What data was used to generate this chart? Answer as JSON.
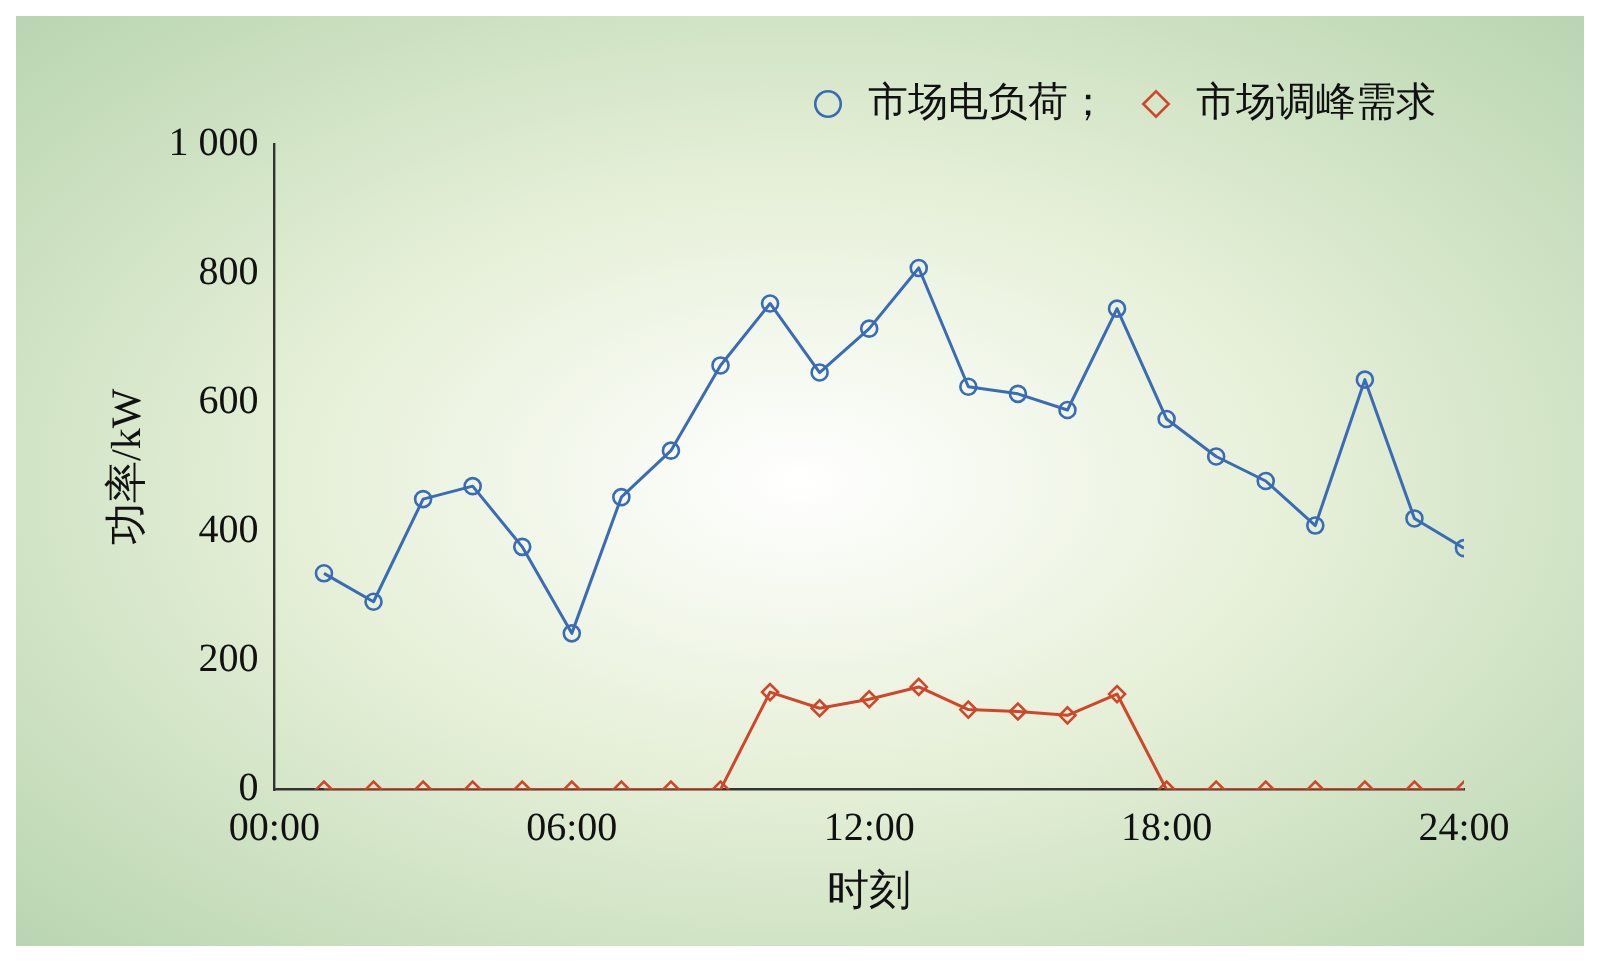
{
  "chart_data": {
    "type": "line",
    "xlabel": "时刻",
    "ylabel": "功率/kW",
    "x": [
      1,
      2,
      3,
      4,
      5,
      6,
      7,
      8,
      9,
      10,
      11,
      12,
      13,
      14,
      15,
      16,
      17,
      18,
      19,
      20,
      21,
      22,
      23,
      24
    ],
    "series": [
      {
        "name": "市场电负荷；",
        "color": "#3a6bb5",
        "marker": "circle",
        "values": [
          335,
          291,
          450,
          470,
          376,
          242,
          453,
          525,
          657,
          753,
          646,
          714,
          808,
          624,
          613,
          588,
          745,
          574,
          516,
          478,
          409,
          635,
          420,
          374
        ]
      },
      {
        "name": "市场调峰需求",
        "color": "#d0462a",
        "marker": "diamond",
        "values": [
          0,
          0,
          0,
          0,
          0,
          0,
          0,
          0,
          0,
          151,
          126,
          140,
          159,
          124,
          121,
          115,
          148,
          0,
          0,
          0,
          0,
          0,
          0,
          0
        ]
      }
    ],
    "xlim": [
      0,
      24
    ],
    "xticks": [
      {
        "value": 0,
        "label": "00:00"
      },
      {
        "value": 6,
        "label": "06:00"
      },
      {
        "value": 12,
        "label": "12:00"
      },
      {
        "value": 18,
        "label": "18:00"
      },
      {
        "value": 24,
        "label": "24:00"
      }
    ],
    "ylim": [
      0,
      1000
    ],
    "yticks": [
      0,
      200,
      400,
      600,
      800,
      {
        "value": 1000,
        "label": "1 000"
      }
    ],
    "grid": false,
    "legend": "top right",
    "line_style": "solid"
  }
}
